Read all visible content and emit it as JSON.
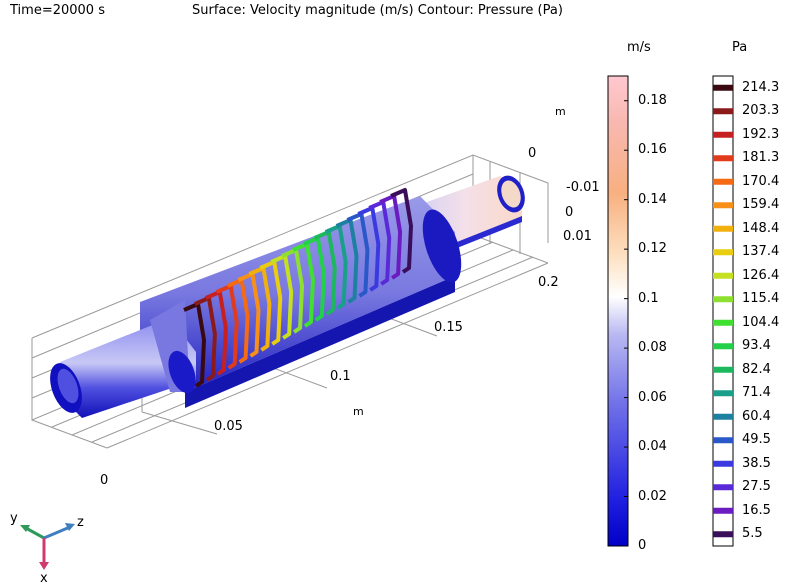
{
  "header": {
    "time_label": "Time=20000 s",
    "plot_title": "Surface: Velocity magnitude (m/s)  Contour: Pressure (Pa)"
  },
  "chart_data": {
    "type": "heatmap",
    "surface_variable": "Velocity magnitude (m/s)",
    "contour_variable": "Pressure (Pa)",
    "time": "20000 s",
    "axes": {
      "x_ticks": [
        "0",
        "0.05",
        "0.1",
        "0.15",
        "0.2"
      ],
      "x_unit": "m",
      "y_ticks": [
        "-0.01",
        "0",
        "0.01"
      ],
      "z_ticks": [
        "0"
      ],
      "z_unit": "m"
    },
    "velocity_colorbar": {
      "unit": "m/s",
      "range": [
        0,
        0.19
      ],
      "ticks": [
        "0.18",
        "0.16",
        "0.14",
        "0.12",
        "0.1",
        "0.08",
        "0.06",
        "0.04",
        "0.02",
        "0"
      ]
    },
    "pressure_levels": {
      "unit": "Pa",
      "levels": [
        "214.3",
        "203.3",
        "192.3",
        "181.3",
        "170.4",
        "159.4",
        "148.4",
        "137.4",
        "126.4",
        "115.4",
        "104.4",
        "93.4",
        "82.4",
        "71.4",
        "60.4",
        "49.5",
        "38.5",
        "27.5",
        "16.5",
        "5.5"
      ],
      "colors": [
        "#3a0a10",
        "#8b1a1a",
        "#c62020",
        "#e23b1c",
        "#f56a12",
        "#f89018",
        "#f2b00e",
        "#e8cd10",
        "#c4e020",
        "#8ee030",
        "#40e030",
        "#22d04a",
        "#1db85e",
        "#1aa08a",
        "#1e80a0",
        "#2a58c8",
        "#3a3ae0",
        "#5a2ad8",
        "#6b1cc0",
        "#3a0e5a"
      ]
    }
  },
  "triad": {
    "y": "y",
    "z": "z",
    "x": "x"
  }
}
